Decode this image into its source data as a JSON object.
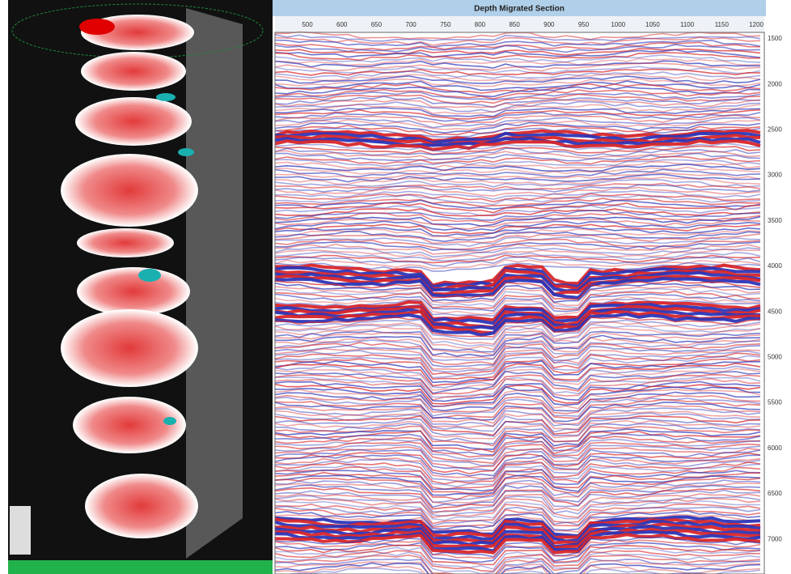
{
  "section": {
    "title": "Depth Migrated Section",
    "trace_labels": [
      "500",
      "600",
      "650",
      "700",
      "750",
      "800",
      "850",
      "900",
      "950",
      "1000",
      "1050",
      "1100",
      "1150",
      "1200"
    ],
    "depth_labels": [
      "1500",
      "2000",
      "2500",
      "3000",
      "3500",
      "4000",
      "4500",
      "5000",
      "5500",
      "6000",
      "6500",
      "7000"
    ]
  }
}
